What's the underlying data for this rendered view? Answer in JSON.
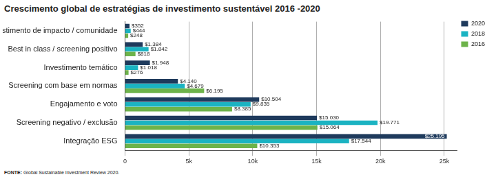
{
  "chart_data": {
    "type": "bar",
    "title": "Crescimento global de estratégias de investimento sustentável 2016 -2020",
    "source": "FONTE: Global Sustainable Investment Review 2020.",
    "orientation": "horizontal",
    "categories": [
      "Investimento de impacto / comunidade",
      "Best in class / screening positivo",
      "Investimento temático",
      "Screening com base em normas",
      "Engajamento e voto",
      "Screening negativo / exclusão",
      "Integração ESG"
    ],
    "series": [
      {
        "name": "2020",
        "color": "#1e3a5c",
        "values": [
          352,
          1384,
          1948,
          4140,
          10504,
          15030,
          25195
        ],
        "value_labels": [
          "$352",
          "$1.384",
          "$1.948",
          "$4.140",
          "$10.504",
          "$15.030",
          "$25.195"
        ]
      },
      {
        "name": "2018",
        "color": "#1bb3c2",
        "values": [
          444,
          1842,
          1018,
          4679,
          9835,
          19771,
          17544
        ],
        "value_labels": [
          "$444",
          "$1.842",
          "$1.018",
          "$4.679",
          "$9.835",
          "$19.771",
          "$17.544"
        ]
      },
      {
        "name": "2016",
        "color": "#6db34a",
        "values": [
          248,
          818,
          276,
          6195,
          8385,
          15064,
          10353
        ],
        "value_labels": [
          "$248",
          "$818",
          "$276",
          "$6.195",
          "$8.385",
          "$15.064",
          "$10.353"
        ]
      }
    ],
    "xlim": [
      0,
      26000
    ],
    "xticks": [
      0,
      {
        "value": 5000,
        "label": "5k"
      },
      {
        "value": 10000,
        "label": "10k"
      },
      {
        "value": 15000,
        "label": "15k"
      },
      {
        "value": 20000,
        "label": "20k"
      },
      {
        "value": 25000,
        "label": "25k"
      }
    ],
    "grid": true,
    "legend": "upper right",
    "data_labels": true
  }
}
